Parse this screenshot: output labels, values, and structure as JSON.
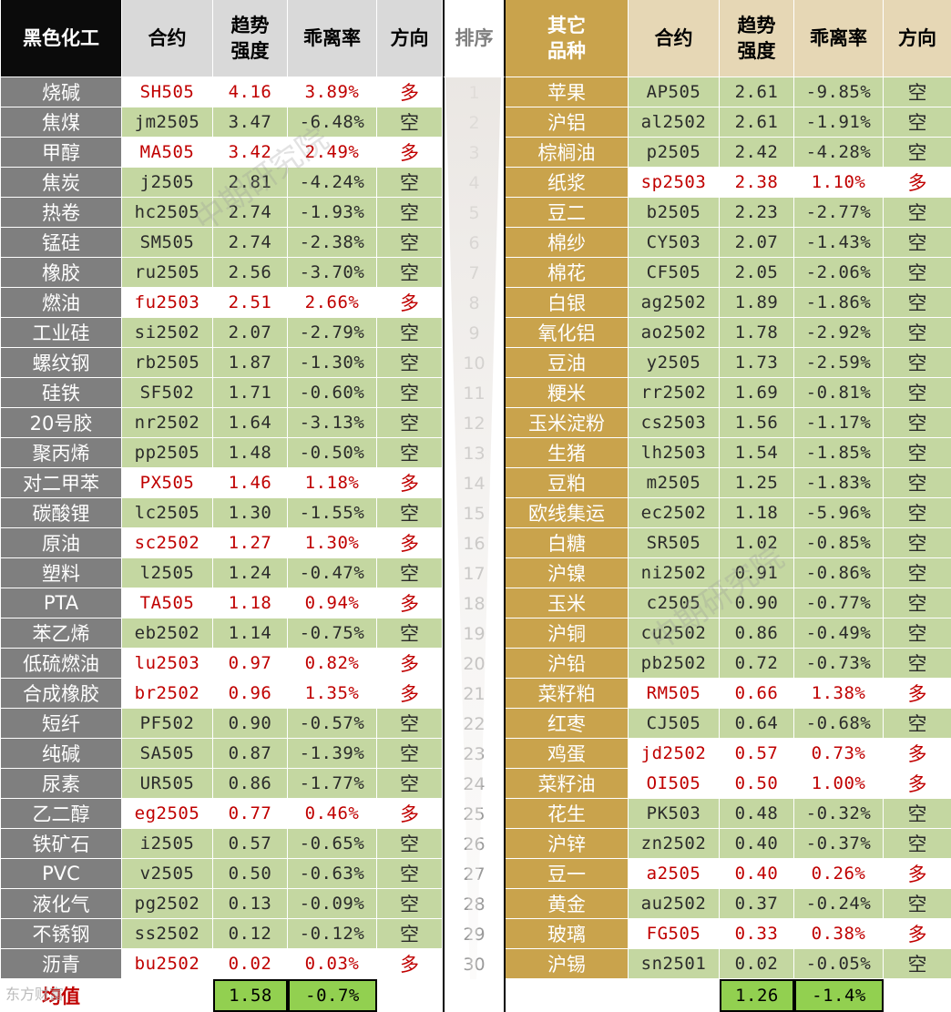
{
  "headers": {
    "left_group": "黑色化工",
    "contract": "合约",
    "strength_line1": "趋势",
    "strength_line2": "强度",
    "deviation": "乖离率",
    "direction": "方向",
    "rank": "排序",
    "right_group_line1": "其它",
    "right_group_line2": "品种"
  },
  "colors": {
    "long_text": "#c00000",
    "short_bg": "#c4d7a1",
    "left_name_bg": "#7f7f7f",
    "right_name_bg": "#c9a34c",
    "avg_bg": "#92d050"
  },
  "ranks": [
    "1",
    "2",
    "3",
    "4",
    "5",
    "6",
    "7",
    "8",
    "9",
    "10",
    "11",
    "12",
    "13",
    "14",
    "15",
    "16",
    "17",
    "18",
    "19",
    "20",
    "21",
    "22",
    "23",
    "24",
    "25",
    "26",
    "27",
    "28",
    "29",
    "30"
  ],
  "left_rows": [
    {
      "name": "烧碱",
      "contract": "SH505",
      "strength": "4.16",
      "deviation": "3.89%",
      "direction": "多"
    },
    {
      "name": "焦煤",
      "contract": "jm2505",
      "strength": "3.47",
      "deviation": "-6.48%",
      "direction": "空"
    },
    {
      "name": "甲醇",
      "contract": "MA505",
      "strength": "3.42",
      "deviation": "2.49%",
      "direction": "多"
    },
    {
      "name": "焦炭",
      "contract": "j2505",
      "strength": "2.81",
      "deviation": "-4.24%",
      "direction": "空"
    },
    {
      "name": "热卷",
      "contract": "hc2505",
      "strength": "2.74",
      "deviation": "-1.93%",
      "direction": "空"
    },
    {
      "name": "锰硅",
      "contract": "SM505",
      "strength": "2.74",
      "deviation": "-2.38%",
      "direction": "空"
    },
    {
      "name": "橡胶",
      "contract": "ru2505",
      "strength": "2.56",
      "deviation": "-3.70%",
      "direction": "空"
    },
    {
      "name": "燃油",
      "contract": "fu2503",
      "strength": "2.51",
      "deviation": "2.66%",
      "direction": "多"
    },
    {
      "name": "工业硅",
      "contract": "si2502",
      "strength": "2.07",
      "deviation": "-2.79%",
      "direction": "空"
    },
    {
      "name": "螺纹钢",
      "contract": "rb2505",
      "strength": "1.87",
      "deviation": "-1.30%",
      "direction": "空"
    },
    {
      "name": "硅铁",
      "contract": "SF502",
      "strength": "1.71",
      "deviation": "-0.60%",
      "direction": "空"
    },
    {
      "name": "20号胶",
      "contract": "nr2502",
      "strength": "1.64",
      "deviation": "-3.13%",
      "direction": "空"
    },
    {
      "name": "聚丙烯",
      "contract": "pp2505",
      "strength": "1.48",
      "deviation": "-0.50%",
      "direction": "空"
    },
    {
      "name": "对二甲苯",
      "contract": "PX505",
      "strength": "1.46",
      "deviation": "1.18%",
      "direction": "多"
    },
    {
      "name": "碳酸锂",
      "contract": "lc2505",
      "strength": "1.30",
      "deviation": "-1.55%",
      "direction": "空"
    },
    {
      "name": "原油",
      "contract": "sc2502",
      "strength": "1.27",
      "deviation": "1.30%",
      "direction": "多"
    },
    {
      "name": "塑料",
      "contract": "l2505",
      "strength": "1.24",
      "deviation": "-0.47%",
      "direction": "空"
    },
    {
      "name": "PTA",
      "contract": "TA505",
      "strength": "1.18",
      "deviation": "0.94%",
      "direction": "多"
    },
    {
      "name": "苯乙烯",
      "contract": "eb2502",
      "strength": "1.14",
      "deviation": "-0.75%",
      "direction": "空"
    },
    {
      "name": "低硫燃油",
      "contract": "lu2503",
      "strength": "0.97",
      "deviation": "0.82%",
      "direction": "多"
    },
    {
      "name": "合成橡胶",
      "contract": "br2502",
      "strength": "0.96",
      "deviation": "1.35%",
      "direction": "多"
    },
    {
      "name": "短纤",
      "contract": "PF502",
      "strength": "0.90",
      "deviation": "-0.57%",
      "direction": "空"
    },
    {
      "name": "纯碱",
      "contract": "SA505",
      "strength": "0.87",
      "deviation": "-1.39%",
      "direction": "空"
    },
    {
      "name": "尿素",
      "contract": "UR505",
      "strength": "0.86",
      "deviation": "-1.77%",
      "direction": "空"
    },
    {
      "name": "乙二醇",
      "contract": "eg2505",
      "strength": "0.77",
      "deviation": "0.46%",
      "direction": "多"
    },
    {
      "name": "铁矿石",
      "contract": "i2505",
      "strength": "0.57",
      "deviation": "-0.65%",
      "direction": "空"
    },
    {
      "name": "PVC",
      "contract": "v2505",
      "strength": "0.50",
      "deviation": "-0.63%",
      "direction": "空"
    },
    {
      "name": "液化气",
      "contract": "pg2502",
      "strength": "0.13",
      "deviation": "-0.09%",
      "direction": "空"
    },
    {
      "name": "不锈钢",
      "contract": "ss2502",
      "strength": "0.12",
      "deviation": "-0.12%",
      "direction": "空"
    },
    {
      "name": "沥青",
      "contract": "bu2502",
      "strength": "0.02",
      "deviation": "0.03%",
      "direction": "多"
    }
  ],
  "right_rows": [
    {
      "name": "苹果",
      "contract": "AP505",
      "strength": "2.61",
      "deviation": "-9.85%",
      "direction": "空"
    },
    {
      "name": "沪铝",
      "contract": "al2502",
      "strength": "2.61",
      "deviation": "-1.91%",
      "direction": "空"
    },
    {
      "name": "棕榈油",
      "contract": "p2505",
      "strength": "2.42",
      "deviation": "-4.28%",
      "direction": "空"
    },
    {
      "name": "纸浆",
      "contract": "sp2503",
      "strength": "2.38",
      "deviation": "1.10%",
      "direction": "多"
    },
    {
      "name": "豆二",
      "contract": "b2505",
      "strength": "2.23",
      "deviation": "-2.77%",
      "direction": "空"
    },
    {
      "name": "棉纱",
      "contract": "CY503",
      "strength": "2.07",
      "deviation": "-1.43%",
      "direction": "空"
    },
    {
      "name": "棉花",
      "contract": "CF505",
      "strength": "2.05",
      "deviation": "-2.06%",
      "direction": "空"
    },
    {
      "name": "白银",
      "contract": "ag2502",
      "strength": "1.89",
      "deviation": "-1.86%",
      "direction": "空"
    },
    {
      "name": "氧化铝",
      "contract": "ao2502",
      "strength": "1.78",
      "deviation": "-2.92%",
      "direction": "空"
    },
    {
      "name": "豆油",
      "contract": "y2505",
      "strength": "1.73",
      "deviation": "-2.59%",
      "direction": "空"
    },
    {
      "name": "粳米",
      "contract": "rr2502",
      "strength": "1.69",
      "deviation": "-0.81%",
      "direction": "空"
    },
    {
      "name": "玉米淀粉",
      "contract": "cs2503",
      "strength": "1.56",
      "deviation": "-1.17%",
      "direction": "空"
    },
    {
      "name": "生猪",
      "contract": "lh2503",
      "strength": "1.54",
      "deviation": "-1.85%",
      "direction": "空"
    },
    {
      "name": "豆粕",
      "contract": "m2505",
      "strength": "1.25",
      "deviation": "-1.83%",
      "direction": "空"
    },
    {
      "name": "欧线集运",
      "contract": "ec2502",
      "strength": "1.18",
      "deviation": "-5.96%",
      "direction": "空"
    },
    {
      "name": "白糖",
      "contract": "SR505",
      "strength": "1.02",
      "deviation": "-0.85%",
      "direction": "空"
    },
    {
      "name": "沪镍",
      "contract": "ni2502",
      "strength": "0.91",
      "deviation": "-0.86%",
      "direction": "空"
    },
    {
      "name": "玉米",
      "contract": "c2505",
      "strength": "0.90",
      "deviation": "-0.77%",
      "direction": "空"
    },
    {
      "name": "沪铜",
      "contract": "cu2502",
      "strength": "0.86",
      "deviation": "-0.49%",
      "direction": "空"
    },
    {
      "name": "沪铅",
      "contract": "pb2502",
      "strength": "0.72",
      "deviation": "-0.73%",
      "direction": "空"
    },
    {
      "name": "菜籽粕",
      "contract": "RM505",
      "strength": "0.66",
      "deviation": "1.38%",
      "direction": "多"
    },
    {
      "name": "红枣",
      "contract": "CJ505",
      "strength": "0.64",
      "deviation": "-0.68%",
      "direction": "空"
    },
    {
      "name": "鸡蛋",
      "contract": "jd2502",
      "strength": "0.57",
      "deviation": "0.73%",
      "direction": "多"
    },
    {
      "name": "菜籽油",
      "contract": "OI505",
      "strength": "0.50",
      "deviation": "1.00%",
      "direction": "多"
    },
    {
      "name": "花生",
      "contract": "PK503",
      "strength": "0.48",
      "deviation": "-0.32%",
      "direction": "空"
    },
    {
      "name": "沪锌",
      "contract": "zn2502",
      "strength": "0.40",
      "deviation": "-0.37%",
      "direction": "空"
    },
    {
      "name": "豆一",
      "contract": "a2505",
      "strength": "0.40",
      "deviation": "0.26%",
      "direction": "多"
    },
    {
      "name": "黄金",
      "contract": "au2502",
      "strength": "0.37",
      "deviation": "-0.24%",
      "direction": "空"
    },
    {
      "name": "玻璃",
      "contract": "FG505",
      "strength": "0.33",
      "deviation": "0.38%",
      "direction": "多"
    },
    {
      "name": "沪锡",
      "contract": "sn2501",
      "strength": "0.02",
      "deviation": "-0.05%",
      "direction": "空"
    }
  ],
  "footer": {
    "avg_label": "均值",
    "left_avg_strength": "1.58",
    "left_avg_deviation": "-0.7%",
    "right_avg_strength": "1.26",
    "right_avg_deviation": "-1.4%"
  },
  "watermarks": [
    "中期研究院",
    "中期研究院"
  ],
  "logo_text": "东方财富"
}
